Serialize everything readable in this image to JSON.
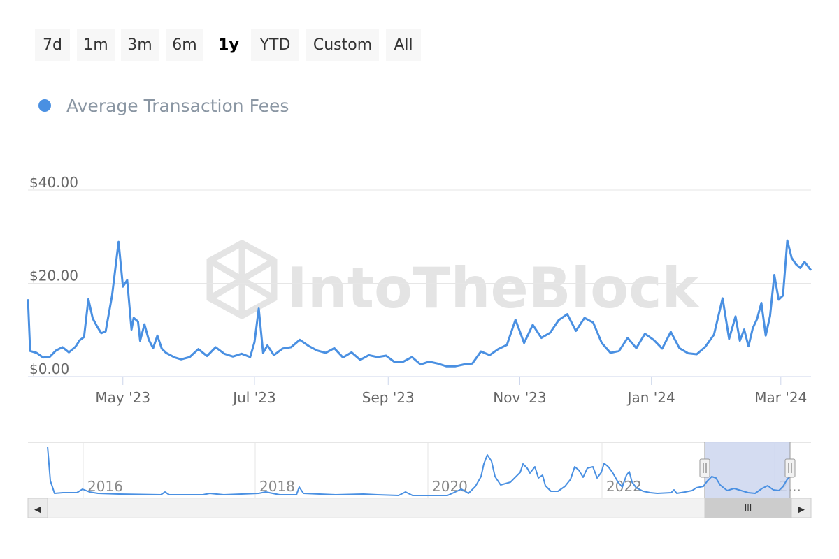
{
  "range_selector": {
    "buttons": [
      {
        "label": "7d",
        "active": false
      },
      {
        "label": "1m",
        "active": false
      },
      {
        "label": "3m",
        "active": false
      },
      {
        "label": "6m",
        "active": false
      },
      {
        "label": "1y",
        "active": true
      },
      {
        "label": "YTD",
        "active": false
      },
      {
        "label": "Custom",
        "active": false
      },
      {
        "label": "All",
        "active": false
      }
    ]
  },
  "legend": {
    "label": "Average Transaction Fees",
    "color": "#4a90e2"
  },
  "watermark": "IntoTheBlock",
  "colors": {
    "line": "#4a90e2",
    "navigator_mask": "#ccd6ee",
    "gridline": "#e6e6e6",
    "scrollbar": "#e6e6e6"
  },
  "navigator": {
    "year_labels": [
      "2016",
      "2018",
      "2020",
      "2022",
      "2..."
    ],
    "scrollbar_grip": "III",
    "left_arrow": "◀",
    "right_arrow": "▶",
    "selected_range": [
      "2023-03-18",
      "2024-03-15"
    ]
  },
  "chart_data": {
    "type": "line",
    "title": "",
    "xlabel": "",
    "ylabel": "",
    "ylim": [
      0,
      40
    ],
    "yticks": [
      0,
      20,
      40
    ],
    "ytick_labels": [
      "$0.00",
      "$20.00",
      "$40.00"
    ],
    "xticks": [
      {
        "label": "May '23",
        "x": "2023-05-01"
      },
      {
        "label": "Jul '23",
        "x": "2023-07-01"
      },
      {
        "label": "Sep '23",
        "x": "2023-09-01"
      },
      {
        "label": "Nov '23",
        "x": "2023-11-01"
      },
      {
        "label": "Jan '24",
        "x": "2024-01-01"
      },
      {
        "label": "Mar '24",
        "x": "2024-03-01"
      }
    ],
    "xrange": [
      "2023-03-18",
      "2024-03-15"
    ],
    "grid": true,
    "legend_position": "top-left",
    "series": [
      {
        "name": "Average Transaction Fees",
        "x": [
          "2023-03-18",
          "2023-03-19",
          "2023-03-22",
          "2023-03-25",
          "2023-03-28",
          "2023-03-31",
          "2023-04-03",
          "2023-04-06",
          "2023-04-09",
          "2023-04-11",
          "2023-04-13",
          "2023-04-15",
          "2023-04-17",
          "2023-04-19",
          "2023-04-21",
          "2023-04-23",
          "2023-04-26",
          "2023-04-29",
          "2023-05-01",
          "2023-05-03",
          "2023-05-05",
          "2023-05-06",
          "2023-05-08",
          "2023-05-09",
          "2023-05-11",
          "2023-05-13",
          "2023-05-15",
          "2023-05-17",
          "2023-05-19",
          "2023-05-21",
          "2023-05-25",
          "2023-05-28",
          "2023-06-01",
          "2023-06-05",
          "2023-06-09",
          "2023-06-13",
          "2023-06-17",
          "2023-06-21",
          "2023-06-25",
          "2023-06-29",
          "2023-07-01",
          "2023-07-03",
          "2023-07-05",
          "2023-07-07",
          "2023-07-10",
          "2023-07-14",
          "2023-07-18",
          "2023-07-22",
          "2023-07-26",
          "2023-07-30",
          "2023-08-03",
          "2023-08-07",
          "2023-08-11",
          "2023-08-15",
          "2023-08-19",
          "2023-08-23",
          "2023-08-27",
          "2023-08-31",
          "2023-09-04",
          "2023-09-08",
          "2023-09-12",
          "2023-09-16",
          "2023-09-20",
          "2023-09-24",
          "2023-09-28",
          "2023-10-02",
          "2023-10-06",
          "2023-10-10",
          "2023-10-14",
          "2023-10-18",
          "2023-10-22",
          "2023-10-26",
          "2023-10-30",
          "2023-11-03",
          "2023-11-07",
          "2023-11-11",
          "2023-11-15",
          "2023-11-19",
          "2023-11-23",
          "2023-11-27",
          "2023-12-01",
          "2023-12-05",
          "2023-12-09",
          "2023-12-13",
          "2023-12-17",
          "2023-12-21",
          "2023-12-25",
          "2023-12-29",
          "2024-01-02",
          "2024-01-06",
          "2024-01-10",
          "2024-01-14",
          "2024-01-18",
          "2024-01-22",
          "2024-01-26",
          "2024-01-30",
          "2024-02-03",
          "2024-02-06",
          "2024-02-09",
          "2024-02-11",
          "2024-02-13",
          "2024-02-15",
          "2024-02-17",
          "2024-02-19",
          "2024-02-21",
          "2024-02-23",
          "2024-02-25",
          "2024-02-27",
          "2024-02-29",
          "2024-03-02",
          "2024-03-04",
          "2024-03-06",
          "2024-03-08",
          "2024-03-10",
          "2024-03-12",
          "2024-03-15"
        ],
        "y": [
          16.6,
          5.5,
          5.1,
          4.1,
          4.2,
          5.6,
          6.3,
          5.2,
          6.4,
          7.8,
          8.5,
          16.6,
          12.5,
          10.8,
          9.3,
          9.7,
          17.4,
          28.9,
          19.3,
          20.7,
          10.1,
          12.6,
          11.8,
          7.7,
          11.2,
          7.9,
          6.1,
          8.8,
          6.0,
          5.1,
          4.1,
          3.7,
          4.2,
          5.9,
          4.4,
          6.3,
          4.9,
          4.3,
          4.9,
          4.2,
          7.4,
          14.6,
          5.1,
          6.7,
          4.6,
          6.0,
          6.3,
          7.9,
          6.6,
          5.6,
          5.1,
          6.1,
          4.1,
          5.2,
          3.6,
          4.6,
          4.2,
          4.5,
          3.1,
          3.2,
          4.2,
          2.6,
          3.2,
          2.8,
          2.2,
          2.2,
          2.6,
          2.8,
          5.4,
          4.6,
          5.9,
          6.8,
          12.2,
          7.2,
          11.1,
          8.3,
          9.4,
          12.1,
          13.4,
          9.8,
          12.6,
          11.6,
          7.2,
          5.1,
          5.5,
          8.3,
          6.1,
          9.2,
          7.9,
          6.0,
          9.6,
          6.1,
          5.0,
          4.8,
          6.4,
          9.0,
          16.8,
          8.1,
          12.9,
          7.7,
          10.1,
          6.5,
          10.4,
          12.4,
          15.8,
          8.8,
          13.0,
          21.8,
          16.5,
          17.4,
          29.2,
          25.5,
          24.1,
          23.3,
          24.6,
          22.8
        ]
      }
    ]
  }
}
